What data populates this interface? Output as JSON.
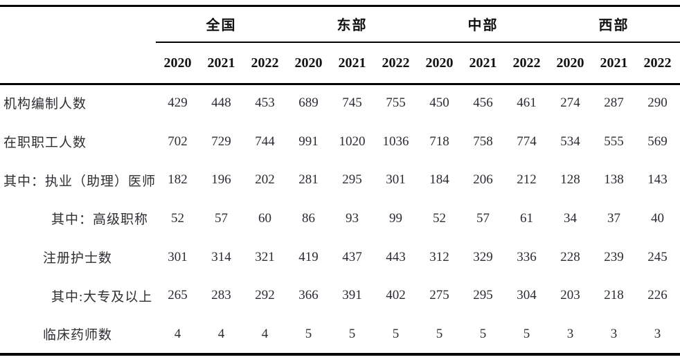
{
  "table": {
    "groups": [
      {
        "label": "全国",
        "years": [
          "2020",
          "2021",
          "2022"
        ]
      },
      {
        "label": "东部",
        "years": [
          "2020",
          "2021",
          "2022"
        ]
      },
      {
        "label": "中部",
        "years": [
          "2020",
          "2021",
          "2022"
        ]
      },
      {
        "label": "西部",
        "years": [
          "2020",
          "2021",
          "2022"
        ]
      }
    ],
    "rows": [
      {
        "label": "机构编制人数",
        "indent": 0,
        "values": [
          "429",
          "448",
          "453",
          "689",
          "745",
          "755",
          "450",
          "456",
          "461",
          "274",
          "287",
          "290"
        ]
      },
      {
        "label": "在职职工人数",
        "indent": 0,
        "values": [
          "702",
          "729",
          "744",
          "991",
          "1020",
          "1036",
          "718",
          "758",
          "774",
          "534",
          "555",
          "569"
        ]
      },
      {
        "label": "其中：执业（助理）医师",
        "indent": 0,
        "values": [
          "182",
          "196",
          "202",
          "281",
          "295",
          "301",
          "184",
          "206",
          "212",
          "128",
          "138",
          "143"
        ]
      },
      {
        "label": "其中：高级职称",
        "indent": 2,
        "values": [
          "52",
          "57",
          "60",
          "86",
          "93",
          "99",
          "52",
          "57",
          "61",
          "34",
          "37",
          "40"
        ]
      },
      {
        "label": "注册护士数",
        "indent": 1,
        "values": [
          "301",
          "314",
          "321",
          "419",
          "437",
          "443",
          "312",
          "329",
          "336",
          "228",
          "239",
          "245"
        ]
      },
      {
        "label": "其中:大专及以上",
        "indent": 2,
        "values": [
          "265",
          "283",
          "292",
          "366",
          "391",
          "402",
          "275",
          "295",
          "304",
          "203",
          "218",
          "226"
        ]
      },
      {
        "label": "临床药师数",
        "indent": 1,
        "values": [
          "4",
          "4",
          "4",
          "5",
          "5",
          "5",
          "5",
          "5",
          "5",
          "3",
          "3",
          "3"
        ]
      }
    ],
    "colors": {
      "background": "#ffffff",
      "rule": "#000000",
      "header_text": "#111111",
      "body_text": "#2b2b33"
    }
  }
}
